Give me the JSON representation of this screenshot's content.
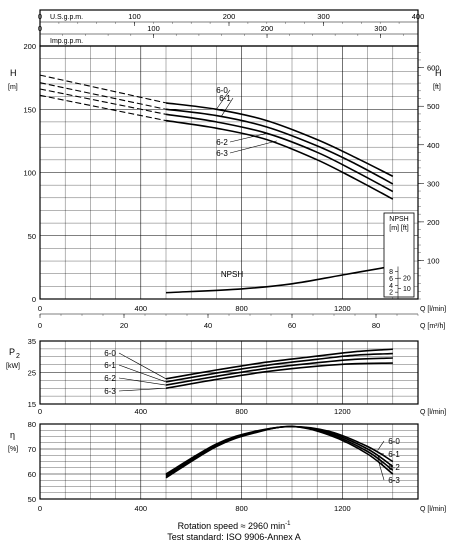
{
  "chart_data": [
    {
      "id": "head",
      "type": "line",
      "top_axes": [
        {
          "label": "U.S.g.p.m.",
          "ticks": [
            "0",
            "100",
            "200",
            "300",
            "400"
          ],
          "range": [
            0,
            400
          ]
        },
        {
          "label": "Imp.g.p.m.",
          "ticks": [
            "0",
            "100",
            "200",
            "300"
          ],
          "range": [
            0,
            333
          ]
        }
      ],
      "bottom_axes": [
        {
          "label": "Q [l/min]",
          "ticks": [
            "0",
            "400",
            "800",
            "1200"
          ],
          "range": [
            0,
            1500
          ]
        },
        {
          "label": "Q [m³/h]",
          "ticks": [
            "0",
            "20",
            "40",
            "60",
            "80"
          ],
          "range": [
            0,
            90
          ]
        }
      ],
      "y_left": {
        "label": "H",
        "unit": "[m]",
        "ticks": [
          "0",
          "50",
          "100",
          "150",
          "200"
        ],
        "range": [
          0,
          200
        ]
      },
      "y_right": {
        "label": "H",
        "unit": "[ft]",
        "ticks": [
          "100",
          "200",
          "300",
          "400",
          "500",
          "600"
        ]
      },
      "series": [
        {
          "name": "6-0",
          "solid": [
            [
              500,
              155
            ],
            [
              700,
              150
            ],
            [
              900,
              141
            ],
            [
              1100,
              126
            ],
            [
              1250,
              112
            ],
            [
              1400,
              97
            ]
          ],
          "dashed": [
            [
              0,
              177
            ],
            [
              500,
              155
            ]
          ]
        },
        {
          "name": "6-1",
          "solid": [
            [
              500,
              150
            ],
            [
              700,
              145
            ],
            [
              900,
              136
            ],
            [
              1100,
              121
            ],
            [
              1250,
              107
            ],
            [
              1400,
              91
            ]
          ],
          "dashed": [
            [
              0,
              171
            ],
            [
              500,
              150
            ]
          ]
        },
        {
          "name": "6-2",
          "solid": [
            [
              500,
              146
            ],
            [
              700,
              140
            ],
            [
              900,
              131
            ],
            [
              1100,
              116
            ],
            [
              1250,
              101
            ],
            [
              1400,
              85
            ]
          ],
          "dashed": [
            [
              0,
              166
            ],
            [
              500,
              146
            ]
          ]
        },
        {
          "name": "6-3",
          "solid": [
            [
              500,
              141
            ],
            [
              700,
              135
            ],
            [
              900,
              126
            ],
            [
              1100,
              110
            ],
            [
              1250,
              95
            ],
            [
              1400,
              79
            ]
          ],
          "dashed": [
            [
              0,
              161
            ],
            [
              500,
              141
            ]
          ]
        }
      ],
      "npsh": {
        "name": "NPSH",
        "points": [
          [
            500,
            5
          ],
          [
            800,
            8
          ],
          [
            1000,
            12
          ],
          [
            1200,
            19
          ],
          [
            1400,
            26
          ]
        ]
      },
      "npsh_inset": {
        "title": "NPSH",
        "units": "[m] [ft]",
        "left_ticks": [
          "2",
          "4",
          "6",
          "8"
        ],
        "right_ticks": [
          "10",
          "20"
        ]
      }
    },
    {
      "id": "power",
      "type": "line",
      "xlabel": "Q [l/min]",
      "x_ticks": [
        "0",
        "400",
        "800",
        "1200"
      ],
      "xlim": [
        0,
        1500
      ],
      "ylabel": "P",
      "ylabel_sub": "2",
      "y_unit": "[kW]",
      "y_ticks": [
        "15",
        "25",
        "35"
      ],
      "ylim": [
        15,
        35
      ],
      "series": [
        {
          "name": "6-0",
          "points": [
            [
              500,
              23
            ],
            [
              700,
              25.8
            ],
            [
              900,
              28.3
            ],
            [
              1100,
              30.2
            ],
            [
              1250,
              31.6
            ],
            [
              1400,
              32.4
            ]
          ]
        },
        {
          "name": "6-1",
          "points": [
            [
              500,
              22
            ],
            [
              700,
              24.8
            ],
            [
              900,
              27.3
            ],
            [
              1100,
              29.2
            ],
            [
              1250,
              30.5
            ],
            [
              1400,
              31
            ]
          ]
        },
        {
          "name": "6-2",
          "points": [
            [
              500,
              21
            ],
            [
              700,
              23.8
            ],
            [
              900,
              26.3
            ],
            [
              1100,
              28.1
            ],
            [
              1250,
              29.2
            ],
            [
              1400,
              29.6
            ]
          ]
        },
        {
          "name": "6-3",
          "points": [
            [
              500,
              20
            ],
            [
              700,
              22.8
            ],
            [
              900,
              25.3
            ],
            [
              1100,
              27
            ],
            [
              1250,
              27.8
            ],
            [
              1400,
              28
            ]
          ]
        }
      ]
    },
    {
      "id": "efficiency",
      "type": "line",
      "xlabel": "Q [l/min]",
      "x_ticks": [
        "0",
        "400",
        "800",
        "1200"
      ],
      "xlim": [
        0,
        1500
      ],
      "ylabel": "η",
      "y_unit": "[%]",
      "y_ticks": [
        "50",
        "60",
        "70",
        "80"
      ],
      "ylim": [
        50,
        80
      ],
      "series": [
        {
          "name": "6-0",
          "points": [
            [
              500,
              60
            ],
            [
              700,
              72
            ],
            [
              850,
              77
            ],
            [
              1000,
              79
            ],
            [
              1150,
              77
            ],
            [
              1300,
              71
            ],
            [
              1400,
              65
            ]
          ]
        },
        {
          "name": "6-1",
          "points": [
            [
              500,
              59.5
            ],
            [
              700,
              71.7
            ],
            [
              850,
              76.8
            ],
            [
              1000,
              79
            ],
            [
              1150,
              76.5
            ],
            [
              1300,
              70
            ],
            [
              1400,
              63
            ]
          ]
        },
        {
          "name": "6-2",
          "points": [
            [
              500,
              59
            ],
            [
              700,
              71.4
            ],
            [
              850,
              76.6
            ],
            [
              1000,
              79
            ],
            [
              1150,
              76
            ],
            [
              1300,
              69
            ],
            [
              1400,
              61.5
            ]
          ]
        },
        {
          "name": "6-3",
          "points": [
            [
              500,
              58.5
            ],
            [
              700,
              71
            ],
            [
              850,
              76.4
            ],
            [
              1000,
              79
            ],
            [
              1150,
              75.5
            ],
            [
              1300,
              68
            ],
            [
              1400,
              60
            ]
          ]
        }
      ]
    }
  ],
  "footer": {
    "rotation_speed": "Rotation speed ≈ 2960 min",
    "rotation_exp": "-1",
    "test_standard": "Test standard: ISO 9906-Annex A"
  }
}
